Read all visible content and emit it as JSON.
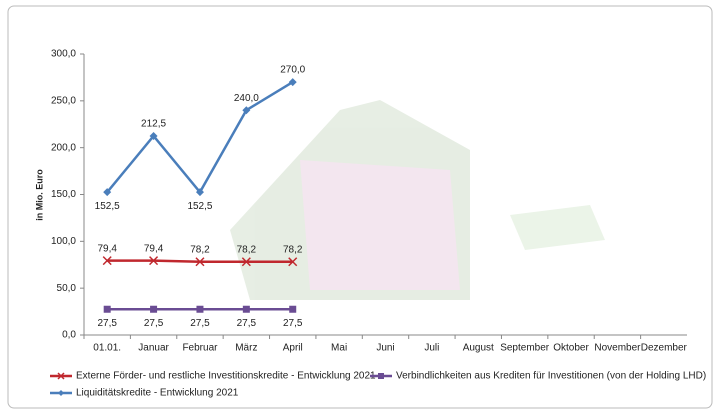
{
  "chart_data": {
    "type": "line",
    "y_label": "in Mio. Euro",
    "categories": [
      "01.01.",
      "Januar",
      "Februar",
      "März",
      "April",
      "Mai",
      "Juni",
      "Juli",
      "August",
      "September",
      "Oktober",
      "November",
      "Dezember"
    ],
    "series": [
      {
        "name": "Externe Förder- und restliche Investitionskredite - Entwicklung 2021",
        "color": "#c0282e",
        "marker": "x",
        "values": [
          79.4,
          79.4,
          78.2,
          78.2,
          78.2,
          null,
          null,
          null,
          null,
          null,
          null,
          null,
          null
        ],
        "value_labels": [
          "79,4",
          "79,4",
          "78,2",
          "78,2",
          "78,2",
          null,
          null,
          null,
          null,
          null,
          null,
          null,
          null
        ]
      },
      {
        "name": "Verbindlichkeiten aus Krediten für Investitionen (von der Holding LHD)",
        "color": "#6a4c93",
        "marker": "square",
        "values": [
          27.5,
          27.5,
          27.5,
          27.5,
          27.5,
          null,
          null,
          null,
          null,
          null,
          null,
          null,
          null
        ],
        "value_labels": [
          "27,5",
          "27,5",
          "27,5",
          "27,5",
          "27,5",
          null,
          null,
          null,
          null,
          null,
          null,
          null,
          null
        ]
      },
      {
        "name": "Liquiditätskredite - Entwicklung 2021",
        "color": "#4a7ebb",
        "marker": "diamond",
        "values": [
          152.5,
          212.5,
          152.5,
          240.0,
          270.0,
          null,
          null,
          null,
          null,
          null,
          null,
          null,
          null
        ],
        "value_labels": [
          "152,5",
          "212,5",
          "152,5",
          "240,0",
          "270,0",
          null,
          null,
          null,
          null,
          null,
          null,
          null,
          null
        ]
      }
    ],
    "ylim": [
      0,
      300
    ],
    "yticks": [
      {
        "value": 0,
        "label": "0,0"
      },
      {
        "value": 50,
        "label": "50,0"
      },
      {
        "value": 100,
        "label": "100,0"
      },
      {
        "value": 150,
        "label": "150,0"
      },
      {
        "value": 200,
        "label": "200,0"
      },
      {
        "value": 250,
        "label": "250,0"
      },
      {
        "value": 300,
        "label": "300,0"
      }
    ],
    "grid": false
  }
}
